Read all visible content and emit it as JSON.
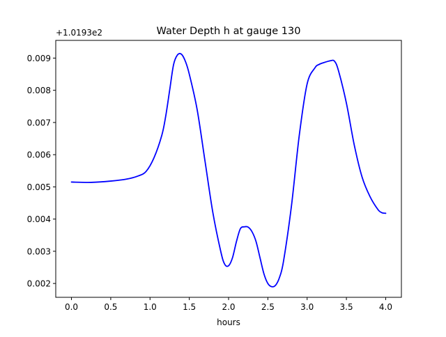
{
  "chart_data": {
    "type": "line",
    "title": "Water Depth h at gauge 130",
    "xlabel": "hours",
    "ylabel": "",
    "y_offset_label": "+1.0193e2",
    "xlim": [
      -0.2,
      4.2
    ],
    "ylim": [
      0.00157,
      0.00955
    ],
    "x_ticks": [
      0.0,
      0.5,
      1.0,
      1.5,
      2.0,
      2.5,
      3.0,
      3.5,
      4.0
    ],
    "x_tick_labels": [
      "0.0",
      "0.5",
      "1.0",
      "1.5",
      "2.0",
      "2.5",
      "3.0",
      "3.5",
      "4.0"
    ],
    "y_ticks": [
      0.002,
      0.003,
      0.004,
      0.005,
      0.006,
      0.007,
      0.008,
      0.009
    ],
    "y_tick_labels": [
      "0.002",
      "0.003",
      "0.004",
      "0.005",
      "0.006",
      "0.007",
      "0.008",
      "0.009"
    ],
    "grid": false,
    "line_color": "#0000ff",
    "series": [
      {
        "x": [
          0.0,
          0.25,
          0.5,
          0.7,
          0.85,
          0.95,
          1.05,
          1.15,
          1.2,
          1.25,
          1.3,
          1.35,
          1.4,
          1.45,
          1.5,
          1.6,
          1.7,
          1.8,
          1.9,
          1.95,
          2.0,
          2.05,
          2.1,
          2.15,
          2.2,
          2.25,
          2.3,
          2.35,
          2.4,
          2.45,
          2.5,
          2.55,
          2.6,
          2.65,
          2.7,
          2.8,
          2.9,
          3.0,
          3.1,
          3.15,
          3.2,
          3.3,
          3.35,
          3.4,
          3.5,
          3.6,
          3.7,
          3.8,
          3.9,
          3.95,
          4.0
        ],
        "y": [
          0.00515,
          0.00514,
          0.00518,
          0.00524,
          0.00534,
          0.00548,
          0.0059,
          0.0066,
          0.0072,
          0.008,
          0.0088,
          0.0091,
          0.00912,
          0.0089,
          0.0085,
          0.0074,
          0.0058,
          0.0042,
          0.003,
          0.0026,
          0.00255,
          0.0028,
          0.0033,
          0.0037,
          0.00376,
          0.00375,
          0.0036,
          0.0033,
          0.0028,
          0.0023,
          0.002,
          0.0019,
          0.00195,
          0.0022,
          0.0027,
          0.0044,
          0.0066,
          0.0082,
          0.0087,
          0.0088,
          0.00885,
          0.00892,
          0.0089,
          0.0086,
          0.0076,
          0.0063,
          0.0053,
          0.0047,
          0.0043,
          0.0042,
          0.00418
        ]
      }
    ]
  }
}
